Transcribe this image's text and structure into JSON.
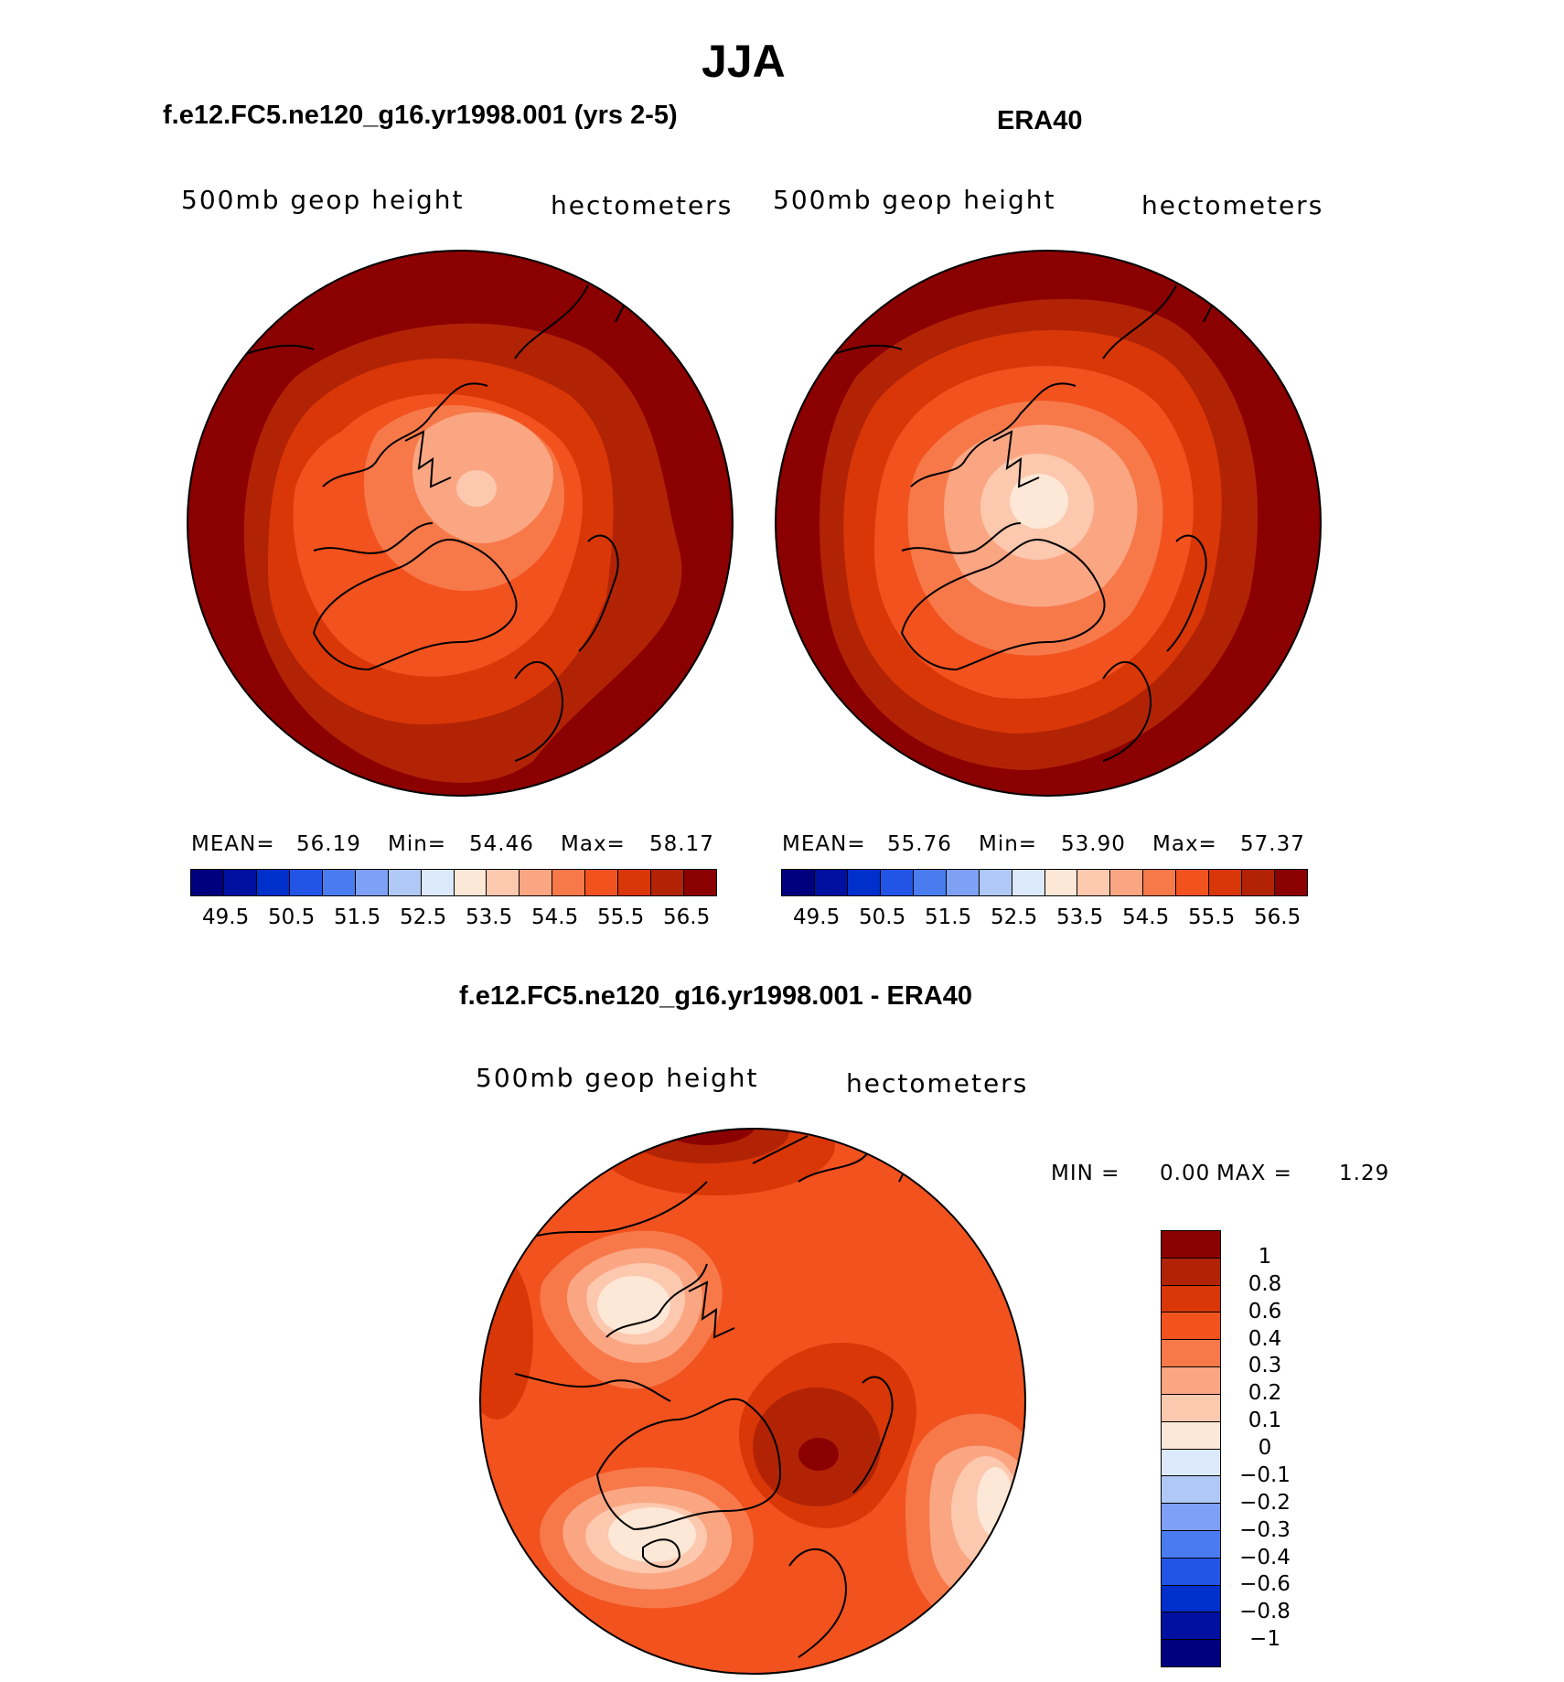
{
  "page_title": "JJA",
  "panels": [
    {
      "title": "f.e12.FC5.ne120_g16.yr1998.001 (yrs 2-5)",
      "left_label": "500mb geop height",
      "right_label": "hectometers",
      "stats": {
        "mean_label": "MEAN=",
        "mean": "56.19",
        "min_label": "Min=",
        "min": "54.46",
        "max_label": "Max=",
        "max": "58.17"
      }
    },
    {
      "title": "ERA40",
      "left_label": "500mb geop height",
      "right_label": "hectometers",
      "stats": {
        "mean_label": "MEAN=",
        "mean": "55.76",
        "min_label": "Min=",
        "min": "53.90",
        "max_label": "Max=",
        "max": "57.37"
      }
    },
    {
      "title": "f.e12.FC5.ne120_g16.yr1998.001 - ERA40",
      "left_label": "500mb geop height",
      "right_label": "hectometers",
      "stats": {
        "min_label": "MIN =",
        "min": "0.00",
        "max_label": "MAX =",
        "max": "1.29"
      }
    }
  ],
  "colorbar_main": {
    "colors": [
      "#00007f",
      "#0010a0",
      "#0030cc",
      "#2255e6",
      "#4a7cf0",
      "#7ea0f5",
      "#b0c8f5",
      "#dce9fa",
      "#fde7d6",
      "#fcc8ae",
      "#fba683",
      "#f7794a",
      "#f2521e",
      "#d93708",
      "#b22306",
      "#8b0000"
    ],
    "tick_labels": [
      "49.5",
      "50.5",
      "51.5",
      "52.5",
      "53.5",
      "54.5",
      "55.5",
      "56.5"
    ]
  },
  "colorbar_diff": {
    "colors": [
      "#8b0000",
      "#b22306",
      "#d93708",
      "#f2521e",
      "#f7794a",
      "#fba683",
      "#fcc8ae",
      "#fde7d6",
      "#dce9fa",
      "#b0c8f5",
      "#7ea0f5",
      "#4a7cf0",
      "#2255e6",
      "#0030cc",
      "#0010a0",
      "#00007f"
    ],
    "tick_labels": [
      "1",
      "0.8",
      "0.6",
      "0.4",
      "0.3",
      "0.2",
      "0.1",
      "0",
      "−0.1",
      "−0.2",
      "−0.3",
      "−0.4",
      "−0.6",
      "−0.8",
      "−1"
    ]
  }
}
